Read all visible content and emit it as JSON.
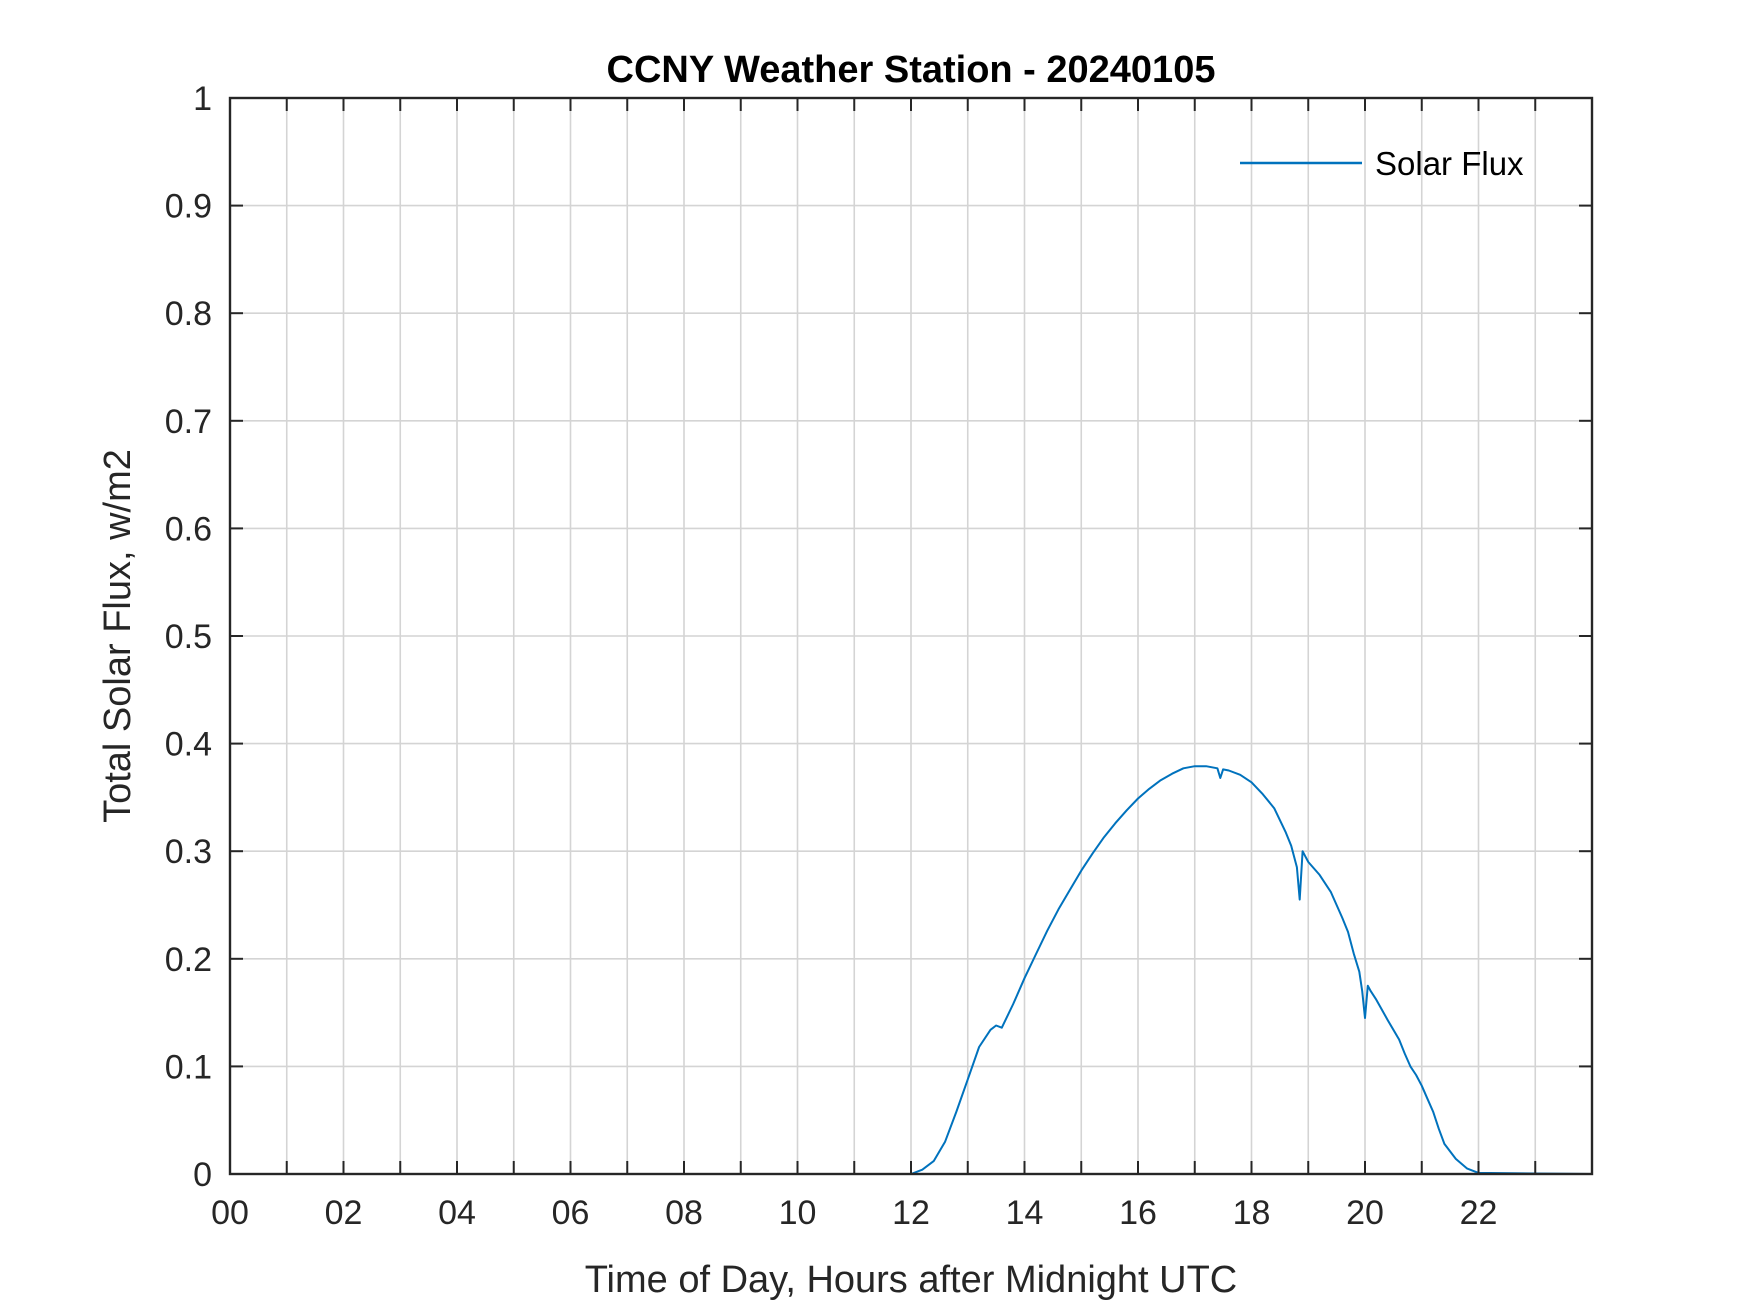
{
  "chart_data": {
    "type": "line",
    "title": "CCNY Weather Station - 20240105",
    "xlabel": "Time of Day, Hours after Midnight UTC",
    "ylabel": "Total Solar Flux, w/m2",
    "xlim": [
      0,
      24
    ],
    "ylim": [
      0,
      1
    ],
    "grid": true,
    "legend_position": "top-right",
    "x_ticks": [
      0,
      2,
      4,
      6,
      8,
      10,
      12,
      14,
      16,
      18,
      20,
      22
    ],
    "x_tick_labels": [
      "00",
      "02",
      "04",
      "06",
      "08",
      "10",
      "12",
      "14",
      "16",
      "18",
      "20",
      "22"
    ],
    "y_ticks": [
      0,
      0.1,
      0.2,
      0.3,
      0.4,
      0.5,
      0.6,
      0.7,
      0.8,
      0.9,
      1
    ],
    "y_tick_labels": [
      "0",
      "0.1",
      "0.2",
      "0.3",
      "0.4",
      "0.5",
      "0.6",
      "0.7",
      "0.8",
      "0.9",
      "1"
    ],
    "series": [
      {
        "name": "Solar Flux",
        "color": "#0072BD",
        "x": [
          0,
          12.0,
          12.2,
          12.4,
          12.6,
          12.8,
          13.0,
          13.2,
          13.4,
          13.5,
          13.6,
          13.8,
          14.0,
          14.2,
          14.4,
          14.6,
          14.8,
          15.0,
          15.2,
          15.4,
          15.6,
          15.8,
          16.0,
          16.2,
          16.4,
          16.6,
          16.8,
          17.0,
          17.2,
          17.4,
          17.45,
          17.5,
          17.6,
          17.8,
          18.0,
          18.2,
          18.4,
          18.6,
          18.7,
          18.8,
          18.85,
          18.9,
          18.95,
          19.0,
          19.2,
          19.4,
          19.6,
          19.7,
          19.8,
          19.9,
          19.95,
          20.0,
          20.05,
          20.1,
          20.2,
          20.4,
          20.6,
          20.7,
          20.8,
          20.9,
          21.0,
          21.1,
          21.2,
          21.3,
          21.4,
          21.6,
          21.8,
          22.0,
          24.0
        ],
        "y": [
          0,
          0,
          0.004,
          0.012,
          0.03,
          0.058,
          0.088,
          0.118,
          0.134,
          0.138,
          0.136,
          0.158,
          0.182,
          0.204,
          0.226,
          0.246,
          0.264,
          0.282,
          0.298,
          0.313,
          0.326,
          0.338,
          0.349,
          0.358,
          0.366,
          0.372,
          0.377,
          0.379,
          0.379,
          0.377,
          0.368,
          0.376,
          0.375,
          0.371,
          0.364,
          0.353,
          0.34,
          0.318,
          0.305,
          0.285,
          0.255,
          0.3,
          0.295,
          0.29,
          0.278,
          0.262,
          0.238,
          0.225,
          0.205,
          0.188,
          0.17,
          0.145,
          0.175,
          0.17,
          0.162,
          0.143,
          0.125,
          0.112,
          0.1,
          0.092,
          0.082,
          0.07,
          0.058,
          0.042,
          0.028,
          0.014,
          0.005,
          0.001,
          0
        ]
      }
    ]
  }
}
